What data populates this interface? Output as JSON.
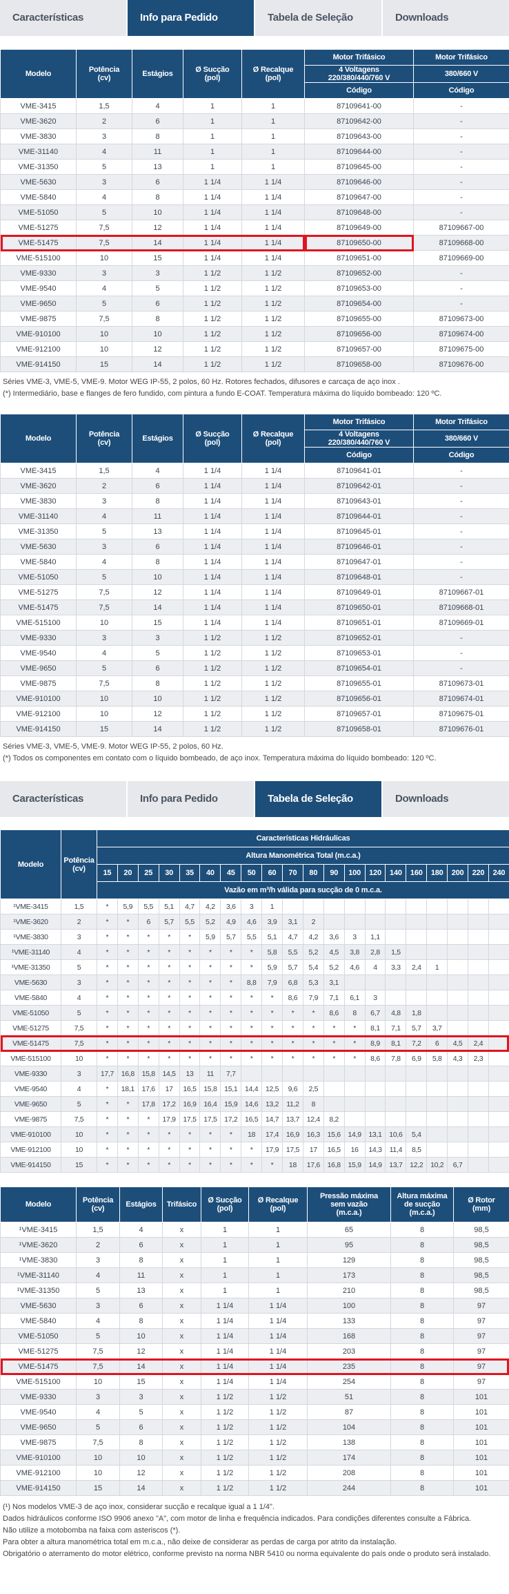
{
  "top_tabs": {
    "items": [
      "Características",
      "Info para Pedido",
      "Tabela de Seleção",
      "Downloads"
    ],
    "active": 1
  },
  "order_table_cast": {
    "columns": {
      "model": "Modelo",
      "power": "Potência\n(cv)",
      "stages": "Estágios",
      "suction": "Ø Sucção\n(pol)",
      "discharge": "Ø Recalque\n(pol)",
      "motor_a": "Motor Trifásico",
      "voltage_a": "4 Voltagens\n220/380/440/760 V",
      "code_a": "Código",
      "motor_b": "Motor Trifásico",
      "voltage_b": "380/660 V",
      "code_b": "Código"
    },
    "rows": [
      [
        "VME-3415",
        "1,5",
        "4",
        "1",
        "1",
        "87109641-00",
        "-"
      ],
      [
        "VME-3620",
        "2",
        "6",
        "1",
        "1",
        "87109642-00",
        "-"
      ],
      [
        "VME-3830",
        "3",
        "8",
        "1",
        "1",
        "87109643-00",
        "-"
      ],
      [
        "VME-31140",
        "4",
        "11",
        "1",
        "1",
        "87109644-00",
        "-"
      ],
      [
        "VME-31350",
        "5",
        "13",
        "1",
        "1",
        "87109645-00",
        "-"
      ],
      [
        "VME-5630",
        "3",
        "6",
        "1 1/4",
        "1 1/4",
        "87109646-00",
        "-"
      ],
      [
        "VME-5840",
        "4",
        "8",
        "1 1/4",
        "1 1/4",
        "87109647-00",
        "-"
      ],
      [
        "VME-51050",
        "5",
        "10",
        "1 1/4",
        "1 1/4",
        "87109648-00",
        "-"
      ],
      [
        "VME-51275",
        "7,5",
        "12",
        "1 1/4",
        "1 1/4",
        "87109649-00",
        "87109667-00"
      ],
      [
        "VME-51475",
        "7,5",
        "14",
        "1 1/4",
        "1 1/4",
        "87109650-00",
        "87109668-00"
      ],
      [
        "VME-515100",
        "10",
        "15",
        "1 1/4",
        "1 1/4",
        "87109651-00",
        "87109669-00"
      ],
      [
        "VME-9330",
        "3",
        "3",
        "1 1/2",
        "1 1/2",
        "87109652-00",
        "-"
      ],
      [
        "VME-9540",
        "4",
        "5",
        "1 1/2",
        "1 1/2",
        "87109653-00",
        "-"
      ],
      [
        "VME-9650",
        "5",
        "6",
        "1 1/2",
        "1 1/2",
        "87109654-00",
        "-"
      ],
      [
        "VME-9875",
        "7,5",
        "8",
        "1 1/2",
        "1 1/2",
        "87109655-00",
        "87109673-00"
      ],
      [
        "VME-910100",
        "10",
        "10",
        "1 1/2",
        "1 1/2",
        "87109656-00",
        "87109674-00"
      ],
      [
        "VME-912100",
        "10",
        "12",
        "1 1/2",
        "1 1/2",
        "87109657-00",
        "87109675-00"
      ],
      [
        "VME-914150",
        "15",
        "14",
        "1 1/2",
        "1 1/2",
        "87109658-00",
        "87109676-00"
      ]
    ],
    "notes": [
      "Séries VME-3, VME-5, VME-9. Motor WEG IP-55, 2 polos, 60 Hz. Rotores fechados, difusores e carcaça de aço inox .",
      "(*) Intermediário, base e flanges de fero fundido, com pintura a fundo E-COAT. Temperatura máxima do líquido bombeado: 120 ºC."
    ]
  },
  "order_table_inox": {
    "columns": {
      "model": "Modelo",
      "power": "Potência\n(cv)",
      "stages": "Estágios",
      "suction": "Ø Sucção\n(pol)",
      "discharge": "Ø Recalque\n(pol)",
      "motor_a": "Motor Trifásico",
      "voltage_a": "4 Voltagens\n220/380/440/760 V",
      "code_a": "Código",
      "motor_b": "Motor Trifásico",
      "voltage_b": "380/660 V",
      "code_b": "Código"
    },
    "rows": [
      [
        "VME-3415",
        "1,5",
        "4",
        "1 1/4",
        "1 1/4",
        "87109641-01",
        "-"
      ],
      [
        "VME-3620",
        "2",
        "6",
        "1 1/4",
        "1 1/4",
        "87109642-01",
        "-"
      ],
      [
        "VME-3830",
        "3",
        "8",
        "1 1/4",
        "1 1/4",
        "87109643-01",
        "-"
      ],
      [
        "VME-31140",
        "4",
        "11",
        "1 1/4",
        "1 1/4",
        "87109644-01",
        "-"
      ],
      [
        "VME-31350",
        "5",
        "13",
        "1 1/4",
        "1 1/4",
        "87109645-01",
        "-"
      ],
      [
        "VME-5630",
        "3",
        "6",
        "1 1/4",
        "1 1/4",
        "87109646-01",
        "-"
      ],
      [
        "VME-5840",
        "4",
        "8",
        "1 1/4",
        "1 1/4",
        "87109647-01",
        "-"
      ],
      [
        "VME-51050",
        "5",
        "10",
        "1 1/4",
        "1 1/4",
        "87109648-01",
        "-"
      ],
      [
        "VME-51275",
        "7,5",
        "12",
        "1 1/4",
        "1 1/4",
        "87109649-01",
        "87109667-01"
      ],
      [
        "VME-51475",
        "7,5",
        "14",
        "1 1/4",
        "1 1/4",
        "87109650-01",
        "87109668-01"
      ],
      [
        "VME-515100",
        "10",
        "15",
        "1 1/4",
        "1 1/4",
        "87109651-01",
        "87109669-01"
      ],
      [
        "VME-9330",
        "3",
        "3",
        "1 1/2",
        "1 1/2",
        "87109652-01",
        "-"
      ],
      [
        "VME-9540",
        "4",
        "5",
        "1 1/2",
        "1 1/2",
        "87109653-01",
        "-"
      ],
      [
        "VME-9650",
        "5",
        "6",
        "1 1/2",
        "1 1/2",
        "87109654-01",
        "-"
      ],
      [
        "VME-9875",
        "7,5",
        "8",
        "1 1/2",
        "1 1/2",
        "87109655-01",
        "87109673-01"
      ],
      [
        "VME-910100",
        "10",
        "10",
        "1 1/2",
        "1 1/2",
        "87109656-01",
        "87109674-01"
      ],
      [
        "VME-912100",
        "10",
        "12",
        "1 1/2",
        "1 1/2",
        "87109657-01",
        "87109675-01"
      ],
      [
        "VME-914150",
        "15",
        "14",
        "1 1/2",
        "1 1/2",
        "87109658-01",
        "87109676-01"
      ]
    ],
    "notes": [
      "Séries VME-3, VME-5, VME-9. Motor WEG IP-55, 2 polos, 60 Hz.",
      "(*) Todos os componentes em contato com o líquido bombeado, de aço inox. Temperatura máxima do líquido bombeado: 120 ºC."
    ]
  },
  "bottom_tabs": {
    "items": [
      "Características",
      "Info para Pedido",
      "Tabela de Seleção",
      "Downloads"
    ],
    "active": 2
  },
  "hydraulic_table": {
    "columns": {
      "model": "Modelo",
      "power": "Potência\n(cv)",
      "group": "Características Hidráulicas",
      "head": "Altura Manométrica Total (m.c.a.)",
      "flow": "Vazão em m³/h válida para sucção de 0 m.c.a."
    },
    "heights": [
      15,
      20,
      25,
      30,
      35,
      40,
      45,
      50,
      60,
      70,
      80,
      90,
      100,
      120,
      140,
      160,
      180,
      200,
      220,
      240
    ],
    "rows": [
      {
        "model": "¹VME-3415",
        "power": "1,5",
        "flows": [
          "*",
          "5,9",
          "5,5",
          "5,1",
          "4,7",
          "4,2",
          "3,6",
          "3",
          "1"
        ]
      },
      {
        "model": "¹VME-3620",
        "power": "2",
        "flows": [
          "*",
          "*",
          "6",
          "5,7",
          "5,5",
          "5,2",
          "4,9",
          "4,6",
          "3,9",
          "3,1",
          "2"
        ]
      },
      {
        "model": "¹VME-3830",
        "power": "3",
        "flows": [
          "*",
          "*",
          "*",
          "*",
          "*",
          "5,9",
          "5,7",
          "5,5",
          "5,1",
          "4,7",
          "4,2",
          "3,6",
          "3",
          "1,1"
        ]
      },
      {
        "model": "¹VME-31140",
        "power": "4",
        "flows": [
          "*",
          "*",
          "*",
          "*",
          "*",
          "*",
          "*",
          "*",
          "5,8",
          "5,5",
          "5,2",
          "4,5",
          "3,8",
          "2,8",
          "1,5"
        ]
      },
      {
        "model": "¹VME-31350",
        "power": "5",
        "flows": [
          "*",
          "*",
          "*",
          "*",
          "*",
          "*",
          "*",
          "*",
          "5,9",
          "5,7",
          "5,4",
          "5,2",
          "4,6",
          "4",
          "3,3",
          "2,4",
          "1"
        ]
      },
      {
        "model": "VME-5630",
        "power": "3",
        "flows": [
          "*",
          "*",
          "*",
          "*",
          "*",
          "*",
          "*",
          "8,8",
          "7,9",
          "6,8",
          "5,3",
          "3,1"
        ]
      },
      {
        "model": "VME-5840",
        "power": "4",
        "flows": [
          "*",
          "*",
          "*",
          "*",
          "*",
          "*",
          "*",
          "*",
          "*",
          "8,6",
          "7,9",
          "7,1",
          "6,1",
          "3"
        ]
      },
      {
        "model": "VME-51050",
        "power": "5",
        "flows": [
          "*",
          "*",
          "*",
          "*",
          "*",
          "*",
          "*",
          "*",
          "*",
          "*",
          "*",
          "8,6",
          "8",
          "6,7",
          "4,8",
          "1,8"
        ]
      },
      {
        "model": "VME-51275",
        "power": "7,5",
        "flows": [
          "*",
          "*",
          "*",
          "*",
          "*",
          "*",
          "*",
          "*",
          "*",
          "*",
          "*",
          "*",
          "*",
          "8,1",
          "7,1",
          "5,7",
          "3,7"
        ]
      },
      {
        "model": "VME-51475",
        "power": "7,5",
        "flows": [
          "*",
          "*",
          "*",
          "*",
          "*",
          "*",
          "*",
          "*",
          "*",
          "*",
          "*",
          "*",
          "*",
          "8,9",
          "8,1",
          "7,2",
          "6",
          "4,5",
          "2,4"
        ]
      },
      {
        "model": "VME-515100",
        "power": "10",
        "flows": [
          "*",
          "*",
          "*",
          "*",
          "*",
          "*",
          "*",
          "*",
          "*",
          "*",
          "*",
          "*",
          "*",
          "8,6",
          "7,8",
          "6,9",
          "5,8",
          "4,3",
          "2,3"
        ]
      },
      {
        "model": "VME-9330",
        "power": "3",
        "flows": [
          "17,7",
          "16,8",
          "15,8",
          "14,5",
          "13",
          "11",
          "7,7"
        ]
      },
      {
        "model": "VME-9540",
        "power": "4",
        "flows": [
          "*",
          "18,1",
          "17,6",
          "17",
          "16,5",
          "15,8",
          "15,1",
          "14,4",
          "12,5",
          "9,6",
          "2,5"
        ]
      },
      {
        "model": "VME-9650",
        "power": "5",
        "flows": [
          "*",
          "*",
          "17,8",
          "17,2",
          "16,9",
          "16,4",
          "15,9",
          "14,6",
          "13,2",
          "11,2",
          "8"
        ]
      },
      {
        "model": "VME-9875",
        "power": "7,5",
        "flows": [
          "*",
          "*",
          "*",
          "17,9",
          "17,5",
          "17,5",
          "17,2",
          "16,5",
          "14,7",
          "13,7",
          "12,4",
          "8,2"
        ]
      },
      {
        "model": "VME-910100",
        "power": "10",
        "flows": [
          "*",
          "*",
          "*",
          "*",
          "*",
          "*",
          "*",
          "18",
          "17,4",
          "16,9",
          "16,3",
          "15,6",
          "14,9",
          "13,1",
          "10,6",
          "5,4"
        ]
      },
      {
        "model": "VME-912100",
        "power": "10",
        "flows": [
          "*",
          "*",
          "*",
          "*",
          "*",
          "*",
          "*",
          "*",
          "17,9",
          "17,5",
          "17",
          "16,5",
          "16",
          "14,3",
          "11,4",
          "8,5"
        ]
      },
      {
        "model": "VME-914150",
        "power": "15",
        "flows": [
          "*",
          "*",
          "*",
          "*",
          "*",
          "*",
          "*",
          "*",
          "*",
          "18",
          "17,6",
          "16,8",
          "15,9",
          "14,9",
          "13,7",
          "12,2",
          "10,2",
          "6,7"
        ]
      }
    ]
  },
  "technical_table": {
    "columns": [
      "Modelo",
      "Potência\n(cv)",
      "Estágios",
      "Trifásico",
      "Ø Sucção\n(pol)",
      "Ø Recalque\n(pol)",
      "Pressão máxima\nsem vazão\n(m.c.a.)",
      "Altura máxima\nde sucção\n(m.c.a.)",
      "Ø Rotor\n(mm)"
    ],
    "rows": [
      [
        "¹VME-3415",
        "1,5",
        "4",
        "x",
        "1",
        "1",
        "65",
        "8",
        "98,5"
      ],
      [
        "¹VME-3620",
        "2",
        "6",
        "x",
        "1",
        "1",
        "95",
        "8",
        "98,5"
      ],
      [
        "¹VME-3830",
        "3",
        "8",
        "x",
        "1",
        "1",
        "129",
        "8",
        "98,5"
      ],
      [
        "¹VME-31140",
        "4",
        "11",
        "x",
        "1",
        "1",
        "173",
        "8",
        "98,5"
      ],
      [
        "¹VME-31350",
        "5",
        "13",
        "x",
        "1",
        "1",
        "210",
        "8",
        "98,5"
      ],
      [
        "VME-5630",
        "3",
        "6",
        "x",
        "1 1/4",
        "1 1/4",
        "100",
        "8",
        "97"
      ],
      [
        "VME-5840",
        "4",
        "8",
        "x",
        "1 1/4",
        "1 1/4",
        "133",
        "8",
        "97"
      ],
      [
        "VME-51050",
        "5",
        "10",
        "x",
        "1 1/4",
        "1 1/4",
        "168",
        "8",
        "97"
      ],
      [
        "VME-51275",
        "7,5",
        "12",
        "x",
        "1 1/4",
        "1 1/4",
        "203",
        "8",
        "97"
      ],
      [
        "VME-51475",
        "7,5",
        "14",
        "x",
        "1 1/4",
        "1 1/4",
        "235",
        "8",
        "97"
      ],
      [
        "VME-515100",
        "10",
        "15",
        "x",
        "1 1/4",
        "1 1/4",
        "254",
        "8",
        "97"
      ],
      [
        "VME-9330",
        "3",
        "3",
        "x",
        "1 1/2",
        "1 1/2",
        "51",
        "8",
        "101"
      ],
      [
        "VME-9540",
        "4",
        "5",
        "x",
        "1 1/2",
        "1 1/2",
        "87",
        "8",
        "101"
      ],
      [
        "VME-9650",
        "5",
        "6",
        "x",
        "1 1/2",
        "1 1/2",
        "104",
        "8",
        "101"
      ],
      [
        "VME-9875",
        "7,5",
        "8",
        "x",
        "1 1/2",
        "1 1/2",
        "138",
        "8",
        "101"
      ],
      [
        "VME-910100",
        "10",
        "10",
        "x",
        "1 1/2",
        "1 1/2",
        "174",
        "8",
        "101"
      ],
      [
        "VME-912100",
        "10",
        "12",
        "x",
        "1 1/2",
        "1 1/2",
        "208",
        "8",
        "101"
      ],
      [
        "VME-914150",
        "15",
        "14",
        "x",
        "1 1/2",
        "1 1/2",
        "244",
        "8",
        "101"
      ]
    ]
  },
  "notes": [
    "(¹) Nos modelos VME-3 de aço inox, considerar sucção e recalque igual a 1 1/4\".",
    "Dados hidráulicos conforme ISO 9906 anexo \"A\", com motor de linha e frequência indicados. Para condições diferentes consulte a Fábrica.",
    "Não utilize a motobomba na faixa com asteriscos (*).",
    "Para obter a altura manométrica total em m.c.a., não deixe de considerar as perdas de carga por atrito da instalação.",
    "Obrigatório o aterramento do motor elétrico, conforme previsto na norma NBR 5410 ou norma equivalente do país onde o produto será instalado."
  ]
}
